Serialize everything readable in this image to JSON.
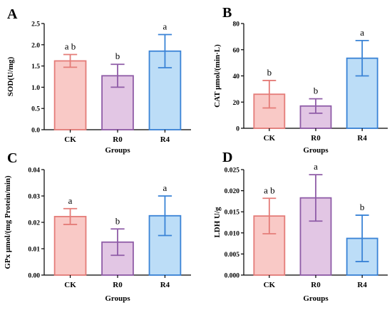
{
  "chart_data": [
    {
      "type": "bar",
      "panel": "A",
      "xlabel": "Groups",
      "ylabel": "SOD(U/mg)",
      "categories": [
        "CK",
        "R0",
        "R4"
      ],
      "values": [
        1.62,
        1.27,
        1.85
      ],
      "errors": [
        0.15,
        0.27,
        0.39
      ],
      "significance": [
        "a b",
        "b",
        "a"
      ],
      "ylim": [
        0,
        2.5
      ],
      "yticks": [
        "0.0",
        "0.5",
        "1.0",
        "1.5",
        "2.0",
        "2.5"
      ],
      "grid": false
    },
    {
      "type": "bar",
      "panel": "B",
      "xlabel": "Groups",
      "ylabel": "CAT μmol/(min·L)",
      "categories": [
        "CK",
        "R0",
        "R4"
      ],
      "values": [
        26,
        17,
        53.5
      ],
      "errors": [
        10.5,
        5.5,
        13.5
      ],
      "significance": [
        "b",
        "b",
        "a"
      ],
      "ylim": [
        0,
        80
      ],
      "yticks": [
        "0",
        "20",
        "40",
        "60",
        "80"
      ],
      "grid": false
    },
    {
      "type": "bar",
      "panel": "C",
      "xlabel": "Groups",
      "ylabel": "GPx μmol/(mg Protein/min)",
      "categories": [
        "CK",
        "R0",
        "R4"
      ],
      "values": [
        0.0222,
        0.0125,
        0.0225
      ],
      "errors": [
        0.003,
        0.005,
        0.0075
      ],
      "significance": [
        "a",
        "b",
        "a"
      ],
      "ylim": [
        0,
        0.04
      ],
      "yticks": [
        "0.00",
        "0.01",
        "0.02",
        "0.03",
        "0.04"
      ],
      "grid": false
    },
    {
      "type": "bar",
      "panel": "D",
      "xlabel": "Groups",
      "ylabel": "LDH U/g",
      "categories": [
        "CK",
        "R0",
        "R4"
      ],
      "values": [
        0.014,
        0.0183,
        0.0087
      ],
      "errors": [
        0.0042,
        0.0055,
        0.0055
      ],
      "significance": [
        "a b",
        "a",
        "b"
      ],
      "ylim": [
        0,
        0.025
      ],
      "yticks": [
        "0.000",
        "0.005",
        "0.010",
        "0.015",
        "0.020",
        "0.025"
      ],
      "grid": false
    }
  ],
  "palette": {
    "fills": [
      "#f9c9c6",
      "#e2c6e4",
      "#bcddf7"
    ],
    "strokes": [
      "#e47c78",
      "#8f5ca7",
      "#3a83d6"
    ]
  }
}
